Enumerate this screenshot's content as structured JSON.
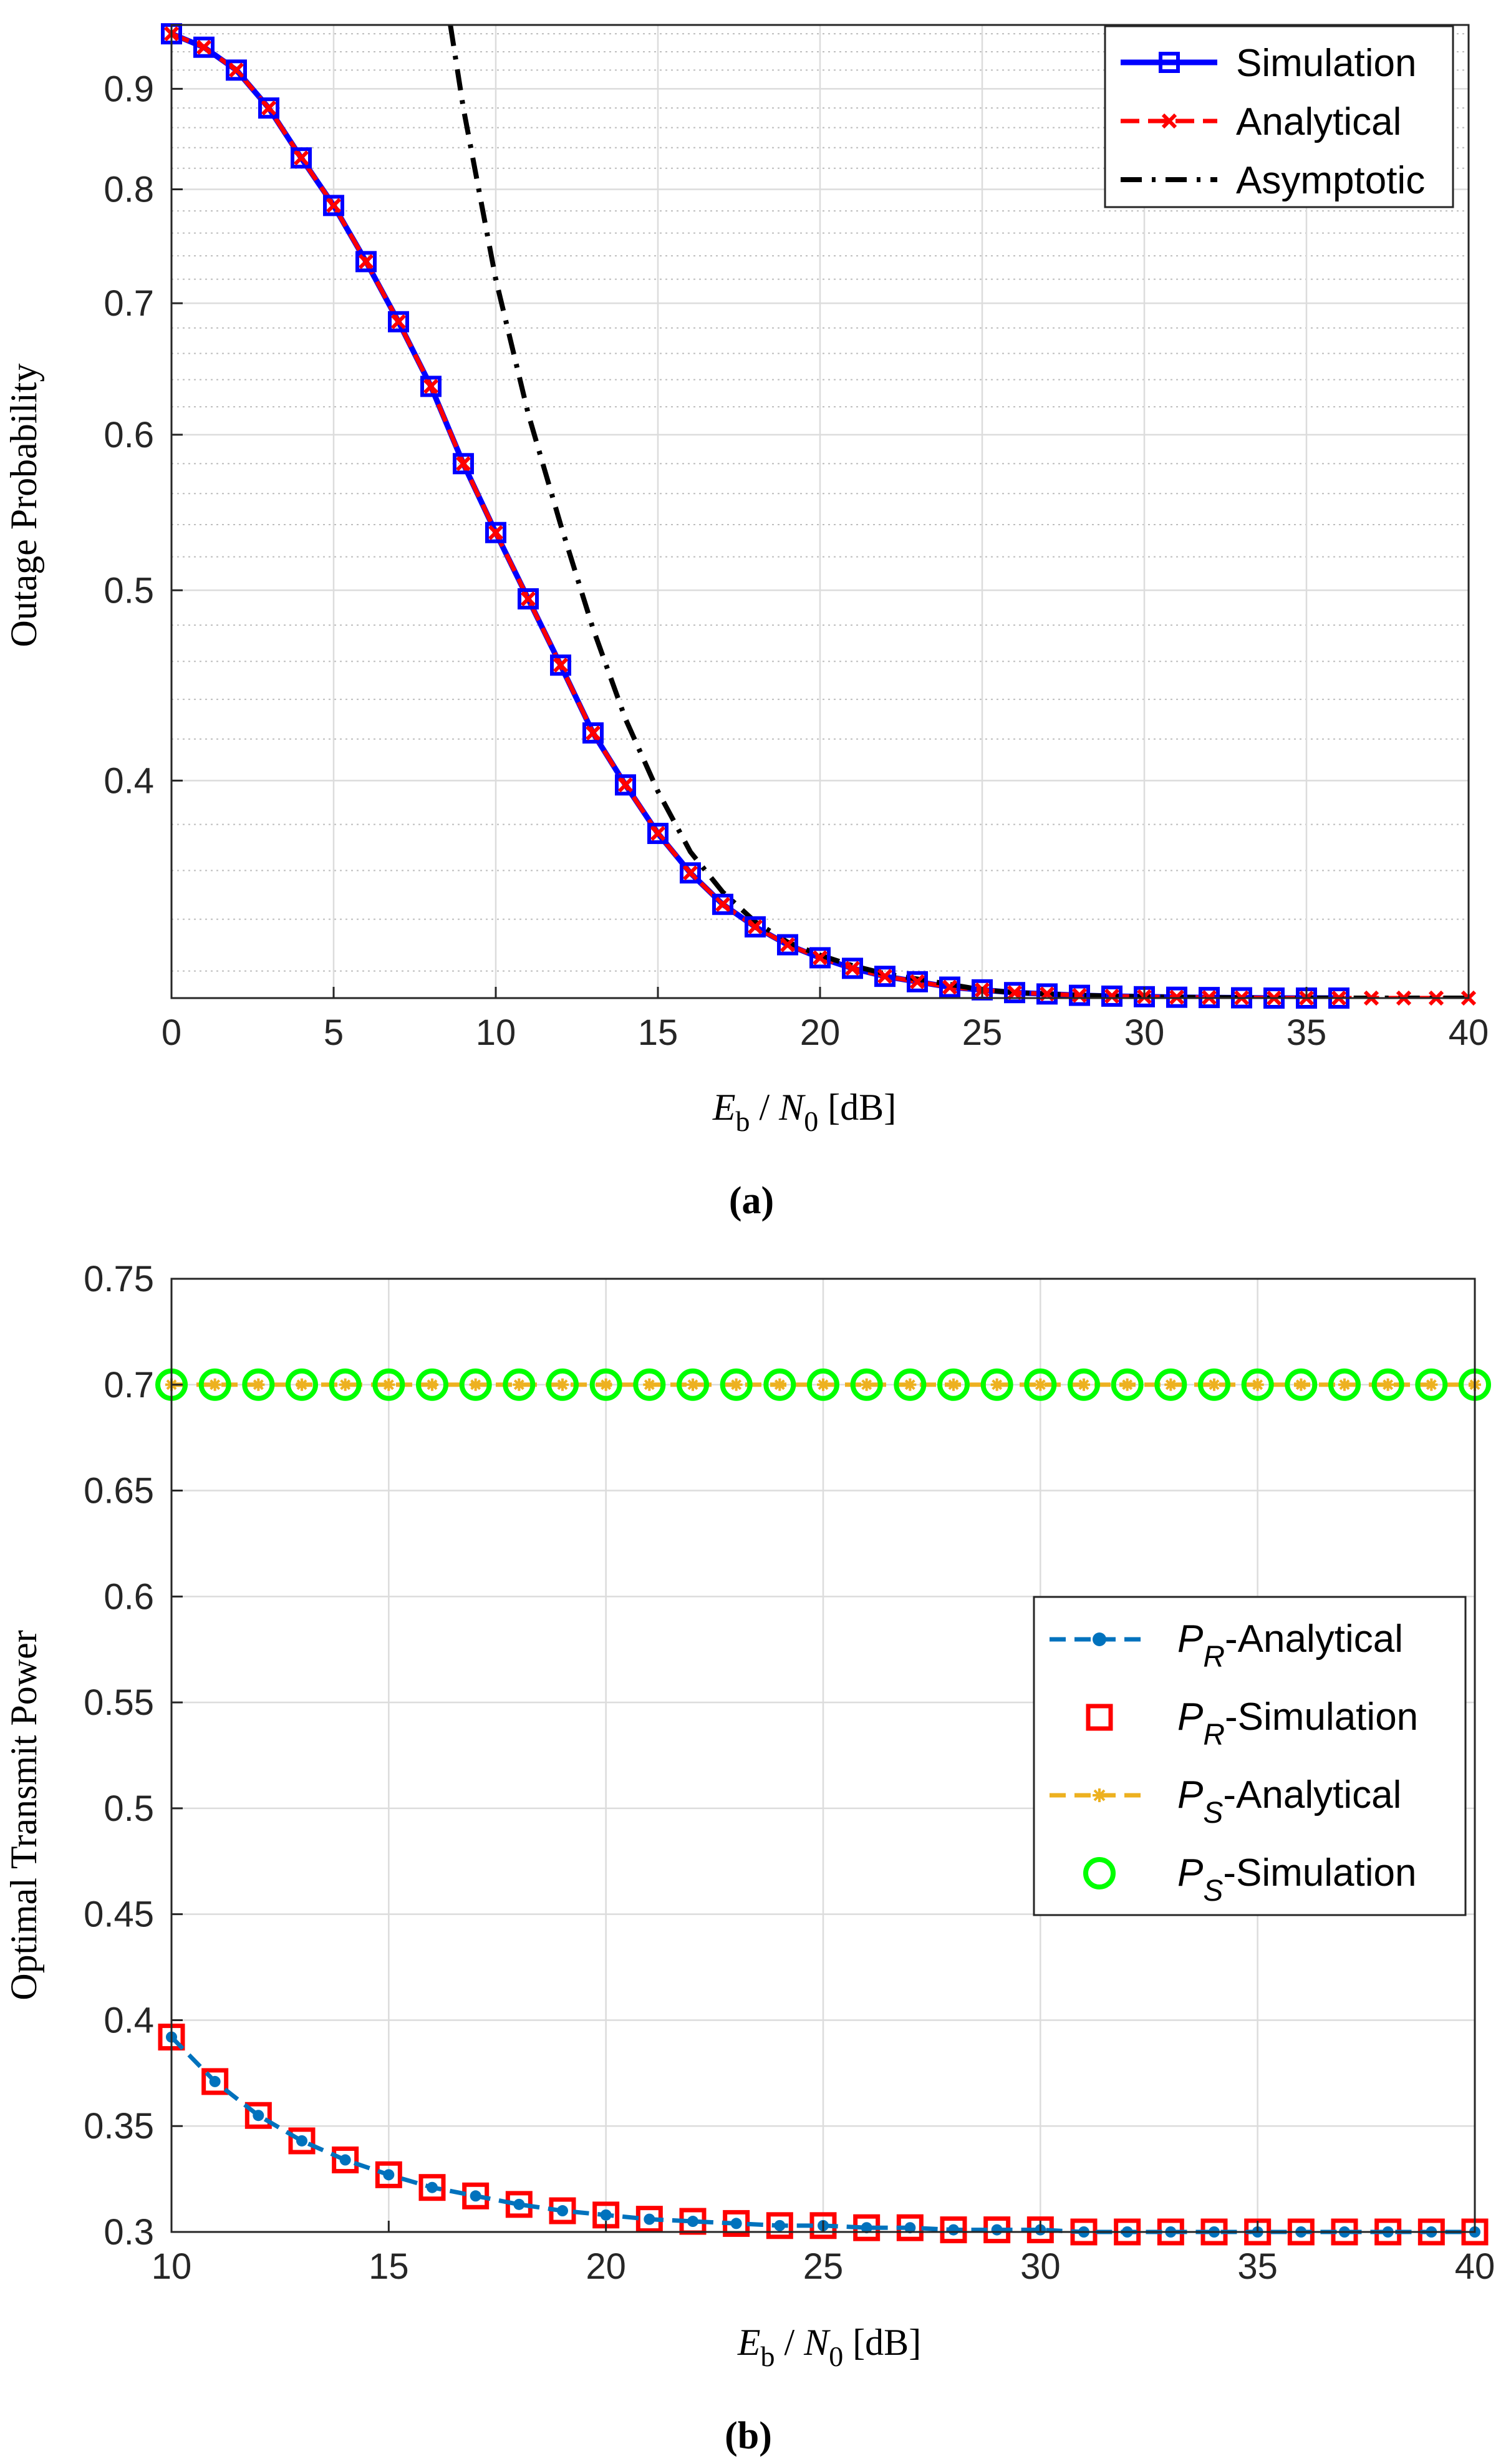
{
  "chart_data": [
    {
      "panel": "a",
      "type": "line",
      "title": "",
      "caption": "(a)",
      "xlabel": "E_b / N_0 [dB]",
      "ylabel": "Outage Probability",
      "xscale": "linear",
      "yscale": "log",
      "xlim": [
        0,
        40
      ],
      "ylim": [
        0.31,
        0.97
      ],
      "xticks": [
        0,
        5,
        10,
        15,
        20,
        25,
        30,
        35,
        40
      ],
      "xtick_labels": [
        "0",
        "5",
        "10",
        "15",
        "20",
        "25",
        "30",
        "35",
        "40"
      ],
      "yticks": [
        0.4,
        0.5,
        0.6,
        0.7,
        0.8,
        0.9
      ],
      "ytick_labels": [
        "0.4",
        "0.5",
        "0.6",
        "0.7",
        "0.8",
        "0.9"
      ],
      "grid": true,
      "legend": "top-right",
      "series": [
        {
          "name": "Simulation",
          "color": "#0000ff",
          "marker": "square",
          "x": [
            0,
            1,
            2,
            3,
            4,
            5,
            6,
            7,
            8,
            9,
            10,
            11,
            12,
            13,
            14,
            15,
            16,
            17,
            18,
            19,
            20,
            21,
            22,
            23,
            24,
            25,
            26,
            27,
            28,
            29,
            30,
            31,
            32,
            33,
            34,
            35,
            36
          ],
          "y": [
            0.96,
            0.945,
            0.92,
            0.88,
            0.83,
            0.785,
            0.735,
            0.685,
            0.635,
            0.58,
            0.535,
            0.495,
            0.458,
            0.423,
            0.398,
            0.376,
            0.359,
            0.346,
            0.337,
            0.33,
            0.325,
            0.321,
            0.318,
            0.316,
            0.314,
            0.313,
            0.312,
            0.3115,
            0.311,
            0.3107,
            0.3105,
            0.3103,
            0.3102,
            0.3101,
            0.31,
            0.31,
            0.31
          ]
        },
        {
          "name": "Analytical",
          "color": "#ff0000",
          "marker": "x",
          "x": [
            0,
            1,
            2,
            3,
            4,
            5,
            6,
            7,
            8,
            9,
            10,
            11,
            12,
            13,
            14,
            15,
            16,
            17,
            18,
            19,
            20,
            21,
            22,
            23,
            24,
            25,
            26,
            27,
            28,
            29,
            30,
            31,
            32,
            33,
            34,
            35,
            36,
            37,
            38,
            39,
            40
          ],
          "y": [
            0.96,
            0.945,
            0.92,
            0.88,
            0.83,
            0.785,
            0.735,
            0.685,
            0.635,
            0.58,
            0.535,
            0.495,
            0.458,
            0.423,
            0.398,
            0.376,
            0.359,
            0.346,
            0.337,
            0.33,
            0.325,
            0.321,
            0.318,
            0.316,
            0.314,
            0.313,
            0.312,
            0.3115,
            0.311,
            0.3107,
            0.3105,
            0.3103,
            0.3102,
            0.3101,
            0.31,
            0.31,
            0.31,
            0.31,
            0.31,
            0.31,
            0.31
          ]
        },
        {
          "name": "Asymptotic",
          "color": "#000000",
          "line": "dash-dot",
          "x": [
            8.6,
            9,
            10,
            11,
            12,
            13,
            14,
            15,
            16,
            17,
            18,
            19,
            20,
            21,
            22,
            23,
            24,
            25,
            26,
            27,
            28,
            29,
            30,
            31,
            32,
            33,
            34,
            35,
            36,
            37,
            38,
            39,
            40
          ],
          "y": [
            0.97,
            0.88,
            0.72,
            0.615,
            0.54,
            0.478,
            0.43,
            0.395,
            0.368,
            0.351,
            0.339,
            0.331,
            0.326,
            0.322,
            0.319,
            0.317,
            0.315,
            0.313,
            0.312,
            0.3115,
            0.311,
            0.3107,
            0.3105,
            0.3103,
            0.3102,
            0.3101,
            0.31,
            0.31,
            0.31,
            0.31,
            0.31,
            0.31,
            0.31
          ]
        }
      ]
    },
    {
      "panel": "b",
      "type": "line",
      "title": "",
      "caption": "(b)",
      "xlabel": "E_b / N_0 [dB]",
      "ylabel": "Optimal Transmit Power",
      "xlim": [
        10,
        40
      ],
      "ylim": [
        0.3,
        0.75
      ],
      "xticks": [
        10,
        15,
        20,
        25,
        30,
        35,
        40
      ],
      "xtick_labels": [
        "10",
        "15",
        "20",
        "25",
        "30",
        "35",
        "40"
      ],
      "yticks": [
        0.3,
        0.35,
        0.4,
        0.45,
        0.5,
        0.55,
        0.6,
        0.65,
        0.7,
        0.75
      ],
      "ytick_labels": [
        "0.3",
        "0.35",
        "0.4",
        "0.45",
        "0.5",
        "0.55",
        "0.6",
        "0.65",
        "0.7",
        "0.75"
      ],
      "grid": true,
      "legend": "middle-right",
      "x": [
        10,
        11,
        12,
        13,
        14,
        15,
        16,
        17,
        18,
        19,
        20,
        21,
        22,
        23,
        24,
        25,
        26,
        27,
        28,
        29,
        30,
        31,
        32,
        33,
        34,
        35,
        36,
        37,
        38,
        39,
        40
      ],
      "series": [
        {
          "name": "P_R-Analytical",
          "label_main": "P",
          "label_sub": "R",
          "label_rest": "-Analytical",
          "color": "#0072bd",
          "marker": "dot",
          "line": "dashed",
          "values": [
            0.392,
            0.371,
            0.355,
            0.343,
            0.334,
            0.327,
            0.321,
            0.317,
            0.313,
            0.31,
            0.308,
            0.306,
            0.305,
            0.304,
            0.303,
            0.303,
            0.302,
            0.302,
            0.301,
            0.301,
            0.301,
            0.3,
            0.3,
            0.3,
            0.3,
            0.3,
            0.3,
            0.3,
            0.3,
            0.3,
            0.3
          ]
        },
        {
          "name": "P_R-Simulation",
          "label_main": "P",
          "label_sub": "R",
          "label_rest": "-Simulation",
          "color": "#ff0000",
          "marker": "square",
          "values": [
            0.392,
            0.371,
            0.355,
            0.343,
            0.334,
            0.327,
            0.321,
            0.317,
            0.313,
            0.31,
            0.308,
            0.306,
            0.305,
            0.304,
            0.303,
            0.303,
            0.302,
            0.302,
            0.301,
            0.301,
            0.301,
            0.3,
            0.3,
            0.3,
            0.3,
            0.3,
            0.3,
            0.3,
            0.3,
            0.3,
            0.3
          ]
        },
        {
          "name": "P_S-Analytical",
          "label_main": "P",
          "label_sub": "S",
          "label_rest": "-Analytical",
          "color": "#edb120",
          "marker": "star",
          "line": "dashed",
          "values": [
            0.7,
            0.7,
            0.7,
            0.7,
            0.7,
            0.7,
            0.7,
            0.7,
            0.7,
            0.7,
            0.7,
            0.7,
            0.7,
            0.7,
            0.7,
            0.7,
            0.7,
            0.7,
            0.7,
            0.7,
            0.7,
            0.7,
            0.7,
            0.7,
            0.7,
            0.7,
            0.7,
            0.7,
            0.7,
            0.7,
            0.7
          ]
        },
        {
          "name": "P_S-Simulation",
          "label_main": "P",
          "label_sub": "S",
          "label_rest": "-Simulation",
          "color": "#00ff00",
          "marker": "circle",
          "values": [
            0.7,
            0.7,
            0.7,
            0.7,
            0.7,
            0.7,
            0.7,
            0.7,
            0.7,
            0.7,
            0.7,
            0.7,
            0.7,
            0.7,
            0.7,
            0.7,
            0.7,
            0.7,
            0.7,
            0.7,
            0.7,
            0.7,
            0.7,
            0.7,
            0.7,
            0.7,
            0.7,
            0.7,
            0.7,
            0.7,
            0.7
          ]
        }
      ]
    }
  ],
  "labels": {
    "xlabel_main": "E",
    "xlabel_sub1": "b",
    "xlabel_slash": " / ",
    "xlabel_n": "N",
    "xlabel_sub2": "0",
    "xlabel_unit": " [dB]"
  }
}
